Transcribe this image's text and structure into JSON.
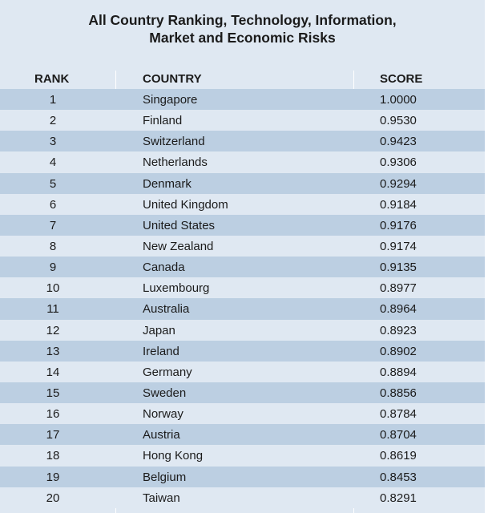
{
  "title_line1": "All Country Ranking, Technology, Information,",
  "title_line2": "Market and Economic Risks",
  "headers": {
    "rank": "RANK",
    "country": "COUNTRY",
    "score": "SCORE"
  },
  "colors": {
    "background": "#dfe8f2",
    "stripe": "#bccfe2"
  },
  "rows": [
    {
      "rank": "1",
      "country": "Singapore",
      "score": "1.0000"
    },
    {
      "rank": "2",
      "country": "Finland",
      "score": "0.9530"
    },
    {
      "rank": "3",
      "country": "Switzerland",
      "score": "0.9423"
    },
    {
      "rank": "4",
      "country": "Netherlands",
      "score": "0.9306"
    },
    {
      "rank": "5",
      "country": "Denmark",
      "score": "0.9294"
    },
    {
      "rank": "6",
      "country": "United Kingdom",
      "score": "0.9184"
    },
    {
      "rank": "7",
      "country": "United States",
      "score": "0.9176"
    },
    {
      "rank": "8",
      "country": "New Zealand",
      "score": "0.9174"
    },
    {
      "rank": "9",
      "country": "Canada",
      "score": "0.9135"
    },
    {
      "rank": "10",
      "country": "Luxembourg",
      "score": "0.8977"
    },
    {
      "rank": "11",
      "country": "Australia",
      "score": "0.8964"
    },
    {
      "rank": "12",
      "country": "Japan",
      "score": "0.8923"
    },
    {
      "rank": "13",
      "country": "Ireland",
      "score": "0.8902"
    },
    {
      "rank": "14",
      "country": "Germany",
      "score": "0.8894"
    },
    {
      "rank": "15",
      "country": "Sweden",
      "score": "0.8856"
    },
    {
      "rank": "16",
      "country": "Norway",
      "score": "0.8784"
    },
    {
      "rank": "17",
      "country": "Austria",
      "score": "0.8704"
    },
    {
      "rank": "18",
      "country": "Hong Kong",
      "score": "0.8619"
    },
    {
      "rank": "19",
      "country": "Belgium",
      "score": "0.8453"
    },
    {
      "rank": "20",
      "country": "Taiwan",
      "score": "0.8291"
    }
  ]
}
